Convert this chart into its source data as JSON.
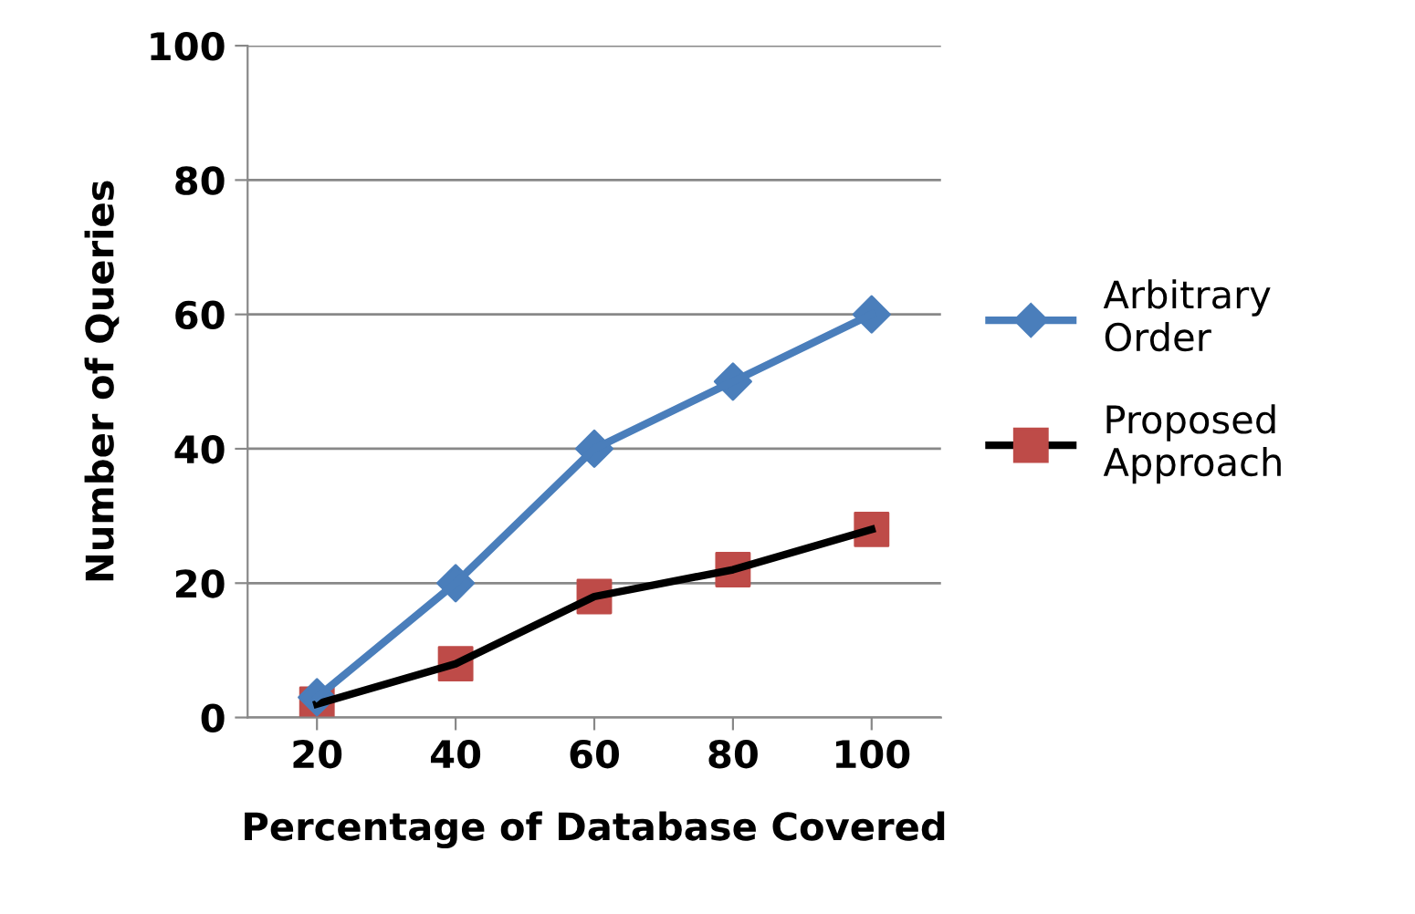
{
  "chart_data": {
    "type": "line",
    "xlabel": "Percentage of Database Covered",
    "ylabel": "Number of Queries",
    "categories": [
      "20",
      "40",
      "60",
      "80",
      "100"
    ],
    "series": [
      {
        "name": "Arbitrary Order",
        "color": "#4a7ebb",
        "colors": [
          "#4a7ebb",
          "#4a7ebb",
          "#4a7ebb",
          "#4a7ebb",
          "#4a7ebb"
        ],
        "marker": "diamond",
        "values": [
          3,
          20,
          40,
          50,
          60
        ]
      },
      {
        "name": "Proposed Approach",
        "color": "#000000",
        "colors": [
          "#be4b48",
          "#be4b48",
          "#be4b48",
          "#be4b48",
          "#be4b48"
        ],
        "marker": "square",
        "values": [
          2,
          8,
          18,
          22,
          28
        ]
      }
    ],
    "ylim": [
      0,
      100
    ],
    "yticks": [
      0,
      20,
      40,
      60,
      80,
      100
    ],
    "grid": "y",
    "legend": "right",
    "line_style": "solid"
  }
}
